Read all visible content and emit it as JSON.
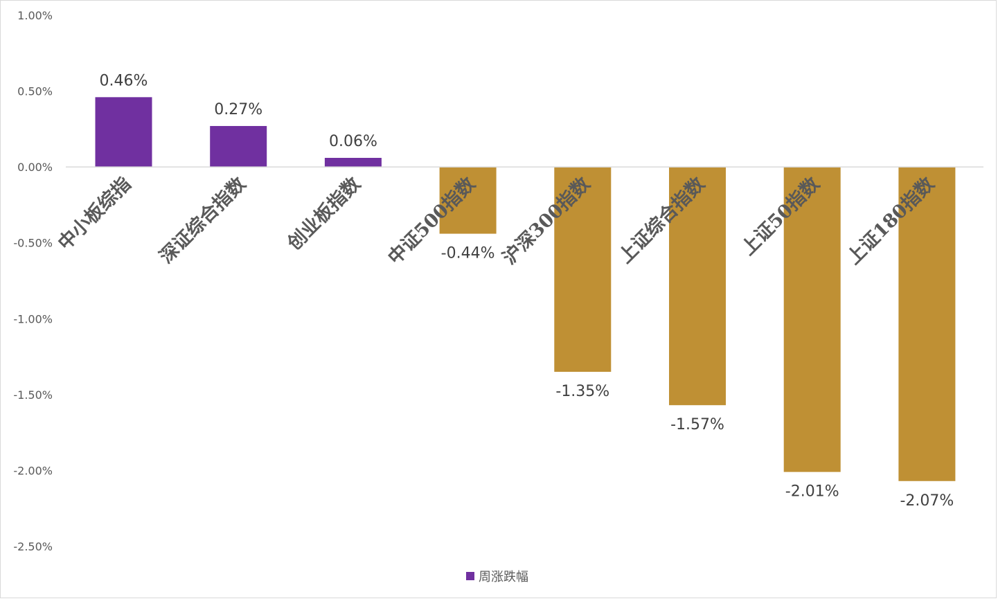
{
  "chart_data": {
    "type": "bar",
    "categories": [
      "中小板综指",
      "深证综合指数",
      "创业板指数",
      "中证500指数",
      "沪深300指数",
      "上证综合指数",
      "上证50指数",
      "上证180指数"
    ],
    "series": [
      {
        "name": "周涨跌幅",
        "values": [
          0.46,
          0.27,
          0.06,
          -0.44,
          -1.35,
          -1.57,
          -2.01,
          -2.07
        ],
        "labels": [
          "0.46%",
          "0.27%",
          "0.06%",
          "-0.44%",
          "-1.35%",
          "-1.57%",
          "-2.01%",
          "-2.07%"
        ]
      }
    ],
    "yticks": [
      1.0,
      0.5,
      0.0,
      -0.5,
      -1.0,
      -1.5,
      -2.0,
      -2.5
    ],
    "ytick_labels": [
      "1.00%",
      "0.50%",
      "0.00%",
      "-0.50%",
      "-1.00%",
      "-1.50%",
      "-2.00%",
      "-2.50%"
    ],
    "ylim": [
      -2.5,
      1.0
    ],
    "unit": "%",
    "grid": false,
    "legend_position": "bottom",
    "colors": {
      "positive": "#7030A0",
      "negative": "#BF9034",
      "axis": "#d9d9d9"
    }
  },
  "legend": {
    "label": "周涨跌幅",
    "color": "#7030A0"
  }
}
